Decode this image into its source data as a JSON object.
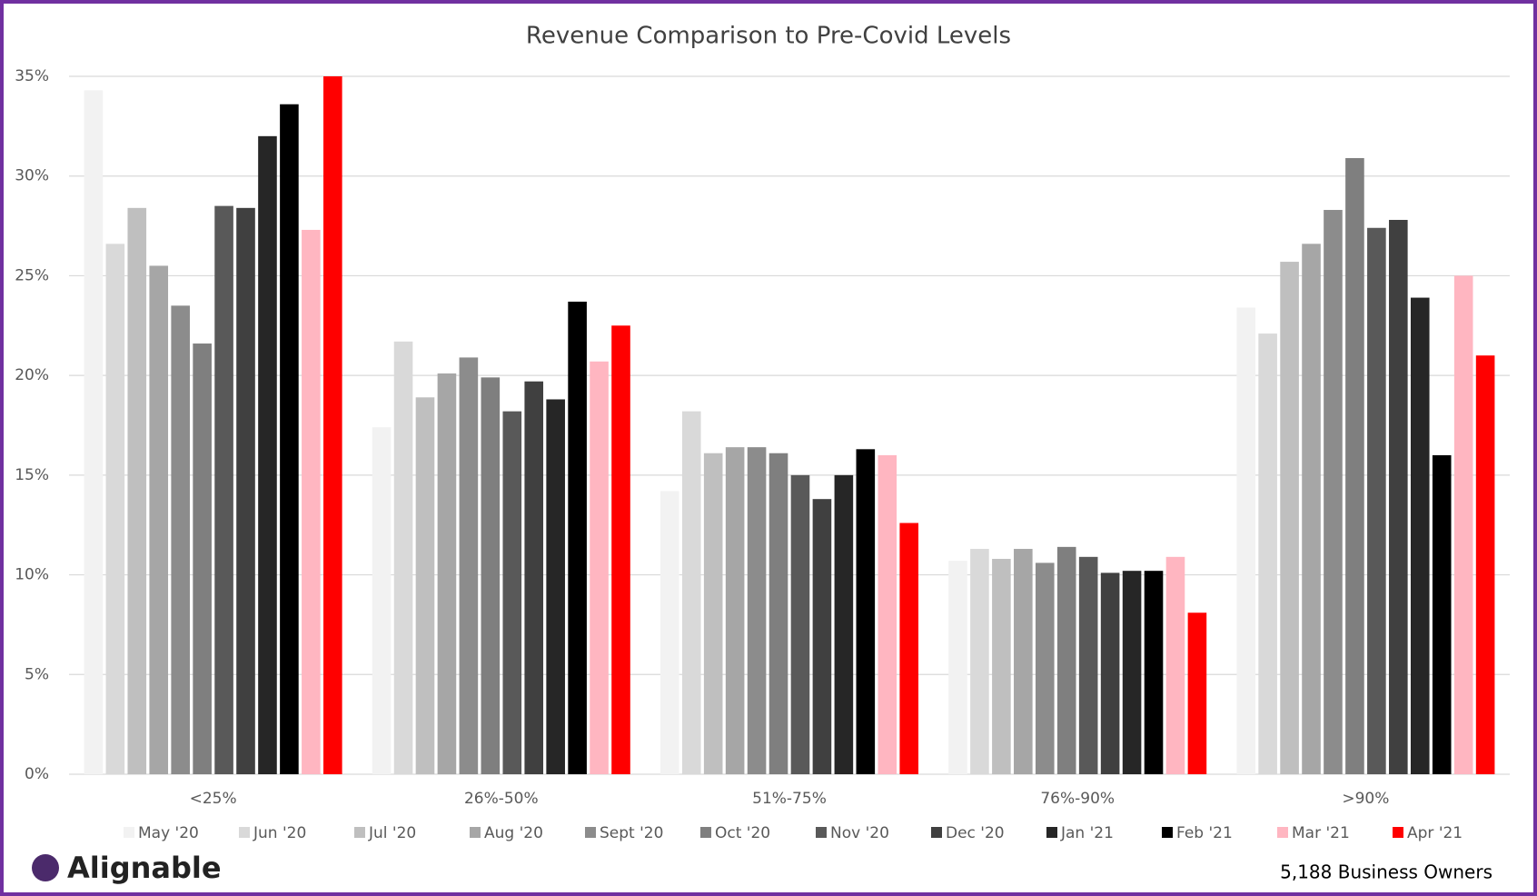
{
  "chart_data": {
    "type": "bar",
    "title": "Revenue Comparison to Pre-Covid Levels",
    "categories": [
      "<25%",
      "26%-50%",
      "51%-75%",
      "76%-90%",
      ">90%"
    ],
    "series": [
      {
        "name": "May '20",
        "color": "#f2f2f2",
        "values": [
          34.3,
          17.4,
          14.2,
          10.7,
          23.4
        ]
      },
      {
        "name": "Jun '20",
        "color": "#d9d9d9",
        "values": [
          26.6,
          21.7,
          18.2,
          11.3,
          22.1
        ]
      },
      {
        "name": "Jul '20",
        "color": "#bfbfbf",
        "values": [
          28.4,
          18.9,
          16.1,
          10.8,
          25.7
        ]
      },
      {
        "name": "Aug '20",
        "color": "#a6a6a6",
        "values": [
          25.5,
          20.1,
          16.4,
          11.3,
          26.6
        ]
      },
      {
        "name": "Sept '20",
        "color": "#8c8c8c",
        "values": [
          23.5,
          20.9,
          16.4,
          10.6,
          28.3
        ]
      },
      {
        "name": "Oct '20",
        "color": "#7f7f7f",
        "values": [
          21.6,
          19.9,
          16.1,
          11.4,
          30.9
        ]
      },
      {
        "name": "Nov '20",
        "color": "#595959",
        "values": [
          28.5,
          18.2,
          15.0,
          10.9,
          27.4
        ]
      },
      {
        "name": "Dec '20",
        "color": "#404040",
        "values": [
          28.4,
          19.7,
          13.8,
          10.1,
          27.8
        ]
      },
      {
        "name": "Jan '21",
        "color": "#262626",
        "values": [
          32.0,
          18.8,
          15.0,
          10.2,
          23.9
        ]
      },
      {
        "name": "Feb '21",
        "color": "#000000",
        "values": [
          33.6,
          23.7,
          16.3,
          10.2,
          16.0
        ]
      },
      {
        "name": "Mar '21",
        "color": "#ffb6c1",
        "values": [
          27.3,
          20.7,
          16.0,
          10.9,
          25.0
        ]
      },
      {
        "name": "Apr '21",
        "color": "#ff0000",
        "values": [
          35.0,
          22.5,
          12.6,
          8.1,
          21.0
        ]
      }
    ],
    "ylim": [
      0,
      35
    ],
    "yticks": [
      {
        "value": 0,
        "label": "0%"
      },
      {
        "value": 5,
        "label": "5%"
      },
      {
        "value": 10,
        "label": "10%"
      },
      {
        "value": 15,
        "label": "15%"
      },
      {
        "value": 20,
        "label": "20%"
      },
      {
        "value": 25,
        "label": "25%"
      },
      {
        "value": 30,
        "label": "30%"
      },
      {
        "value": 35,
        "label": "35%"
      }
    ],
    "grid": true
  },
  "branding": {
    "logo": "Alignable",
    "note": "5,188 Business Owners"
  }
}
